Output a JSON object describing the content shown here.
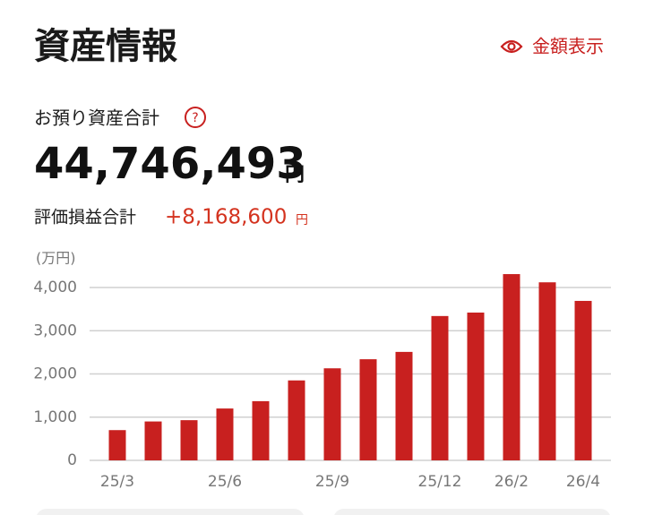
{
  "header": {
    "title": "資産情報",
    "toggle_label": "金額表示"
  },
  "summary": {
    "total_label": "お預り資産合計",
    "total_value": "44,746,493",
    "total_unit": "円",
    "pl_label": "評価損益合計",
    "pl_value": "+8,168,600",
    "pl_unit": "円"
  },
  "chart_data": {
    "type": "bar",
    "y_label": "(万円)",
    "categories": [
      "25/3",
      null,
      null,
      "25/6",
      null,
      null,
      "25/9",
      null,
      null,
      "25/12",
      null,
      "26/2",
      null,
      "26/4"
    ],
    "values": [
      700,
      900,
      930,
      1200,
      1370,
      1850,
      2130,
      2340,
      2510,
      3340,
      3420,
      4310,
      4120,
      3690
    ],
    "color": "#c8201f",
    "ylim": [
      0,
      4400
    ],
    "yticks": [
      0,
      {
        "value": 1000,
        "label": "1,000"
      },
      {
        "value": 2000,
        "label": "2,000"
      },
      {
        "value": 3000,
        "label": "3,000"
      },
      {
        "value": 4000,
        "label": "4,000"
      }
    ],
    "grid": true
  }
}
